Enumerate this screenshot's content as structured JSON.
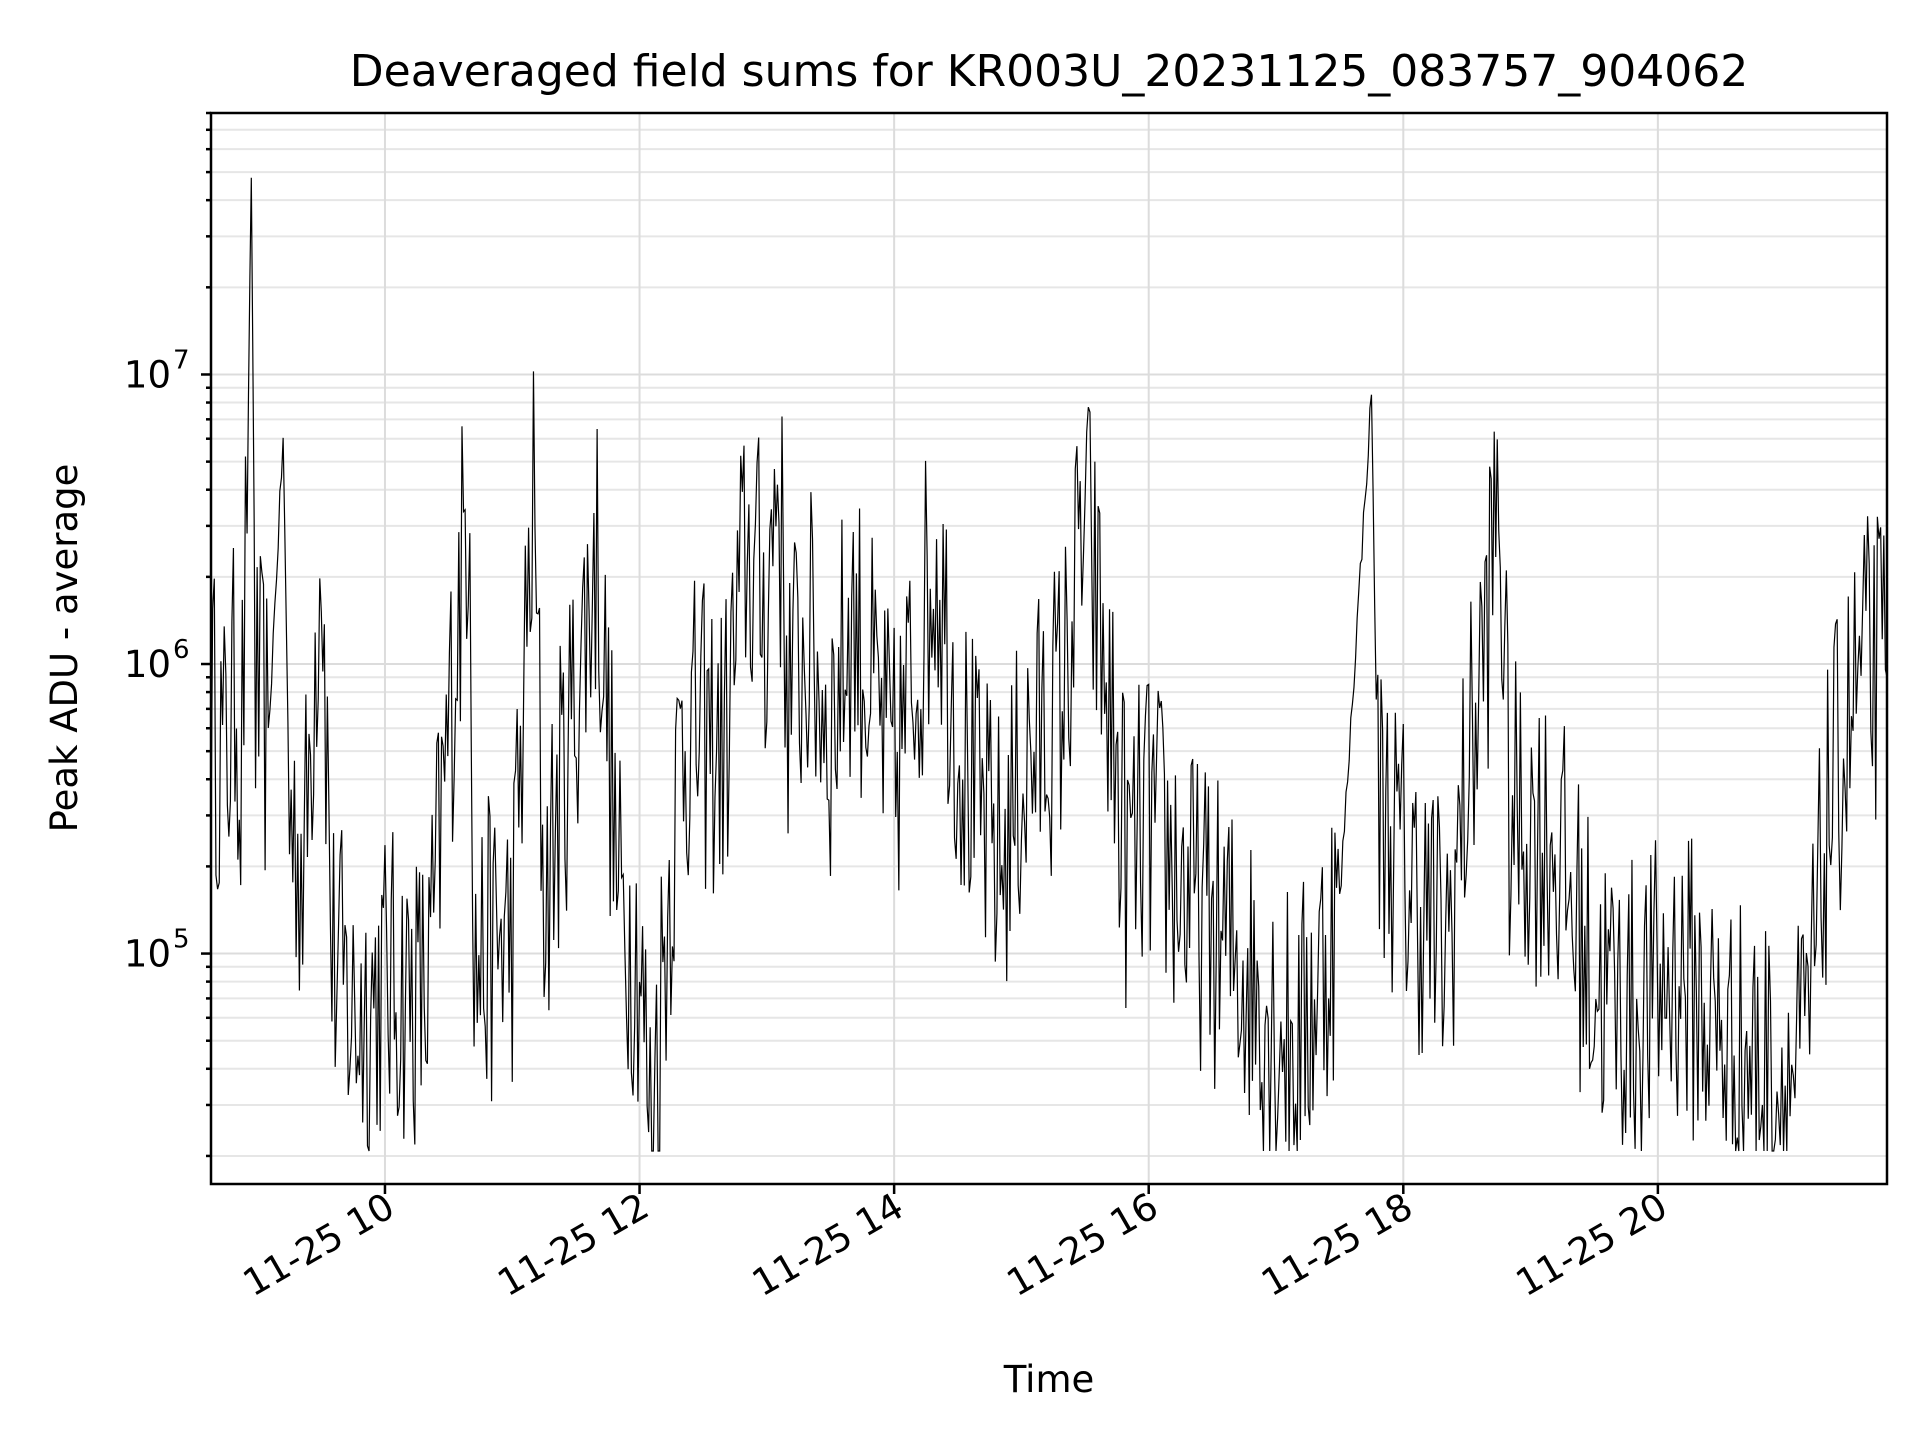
{
  "chart_data": {
    "type": "line",
    "title": "Deaveraged field sums for KR003U_20231125_083757_904062",
    "xlabel": "Time",
    "ylabel": "Peak ADU - average",
    "yscale": "log",
    "grid": "major and minor",
    "x_range": [
      "2023-11-25 08:38",
      "2023-11-25 21:48"
    ],
    "ylim": [
      16000,
      80000000
    ],
    "x_ticks": [
      {
        "time": "2023-11-25 10:00",
        "label": "11-25 10"
      },
      {
        "time": "2023-11-25 12:00",
        "label": "11-25 12"
      },
      {
        "time": "2023-11-25 14:00",
        "label": "11-25 14"
      },
      {
        "time": "2023-11-25 16:00",
        "label": "11-25 16"
      },
      {
        "time": "2023-11-25 18:00",
        "label": "11-25 18"
      },
      {
        "time": "2023-11-25 20:00",
        "label": "11-25 20"
      }
    ],
    "y_ticks": [
      {
        "value": 100000,
        "base": "10",
        "exp": "5"
      },
      {
        "value": 1000000,
        "base": "10",
        "exp": "6"
      },
      {
        "value": 10000000,
        "base": "10",
        "exp": "7"
      }
    ],
    "series": [
      {
        "color": "#000000",
        "points": [
          [
            "2023-11-25 08:38",
            700000
          ],
          [
            "2023-11-25 08:45",
            450000
          ],
          [
            "2023-11-25 08:50",
            900000
          ],
          [
            "2023-11-25 08:52",
            400000
          ],
          [
            "2023-11-25 08:55",
            3000000
          ],
          [
            "2023-11-25 08:57",
            50000000
          ],
          [
            "2023-11-25 08:59",
            800000
          ],
          [
            "2023-11-25 09:05",
            550000
          ],
          [
            "2023-11-25 09:12",
            6000000
          ],
          [
            "2023-11-25 09:15",
            300000
          ],
          [
            "2023-11-25 09:22",
            200000
          ],
          [
            "2023-11-25 09:30",
            3000000
          ],
          [
            "2023-11-25 09:35",
            100000
          ],
          [
            "2023-11-25 09:45",
            60000
          ],
          [
            "2023-11-25 10:00",
            80000
          ],
          [
            "2023-11-25 10:20",
            70000
          ],
          [
            "2023-11-25 10:40",
            4800000
          ],
          [
            "2023-11-25 10:42",
            90000
          ],
          [
            "2023-11-25 11:00",
            120000
          ],
          [
            "2023-11-25 11:10",
            3500000
          ],
          [
            "2023-11-25 11:15",
            150000
          ],
          [
            "2023-11-25 11:40",
            2500000
          ],
          [
            "2023-11-25 11:50",
            150000
          ],
          [
            "2023-11-25 12:00",
            100000
          ],
          [
            "2023-11-25 12:05",
            25000
          ],
          [
            "2023-11-25 12:20",
            600000
          ],
          [
            "2023-11-25 12:40",
            500000
          ],
          [
            "2023-11-25 12:50",
            2500000
          ],
          [
            "2023-11-25 13:00",
            1500000
          ],
          [
            "2023-11-25 13:05",
            5000000
          ],
          [
            "2023-11-25 13:10",
            800000
          ],
          [
            "2023-11-25 13:20",
            1200000
          ],
          [
            "2023-11-25 13:30",
            600000
          ],
          [
            "2023-11-25 13:40",
            1500000
          ],
          [
            "2023-11-25 14:00",
            400000
          ],
          [
            "2023-11-25 14:20",
            2500000
          ],
          [
            "2023-11-25 14:30",
            600000
          ],
          [
            "2023-11-25 14:40",
            300000
          ],
          [
            "2023-11-25 14:50",
            200000
          ],
          [
            "2023-11-25 15:00",
            400000
          ],
          [
            "2023-11-25 15:20",
            800000
          ],
          [
            "2023-11-25 15:30",
            3300000
          ],
          [
            "2023-11-25 15:40",
            800000
          ],
          [
            "2023-11-25 15:50",
            200000
          ],
          [
            "2023-11-25 16:00",
            300000
          ],
          [
            "2023-11-25 16:20",
            150000
          ],
          [
            "2023-11-25 16:40",
            100000
          ],
          [
            "2023-11-25 17:00",
            60000
          ],
          [
            "2023-11-25 17:10",
            45000
          ],
          [
            "2023-11-25 17:30",
            150000
          ],
          [
            "2023-11-25 17:45",
            8500000
          ],
          [
            "2023-11-25 17:48",
            350000
          ],
          [
            "2023-11-25 18:00",
            200000
          ],
          [
            "2023-11-25 18:20",
            100000
          ],
          [
            "2023-11-25 18:40",
            1500000
          ],
          [
            "2023-11-25 18:45",
            4000000
          ],
          [
            "2023-11-25 18:50",
            300000
          ],
          [
            "2023-11-25 19:10",
            250000
          ],
          [
            "2023-11-25 19:30",
            80000
          ],
          [
            "2023-11-25 19:50",
            60000
          ],
          [
            "2023-11-25 20:10",
            90000
          ],
          [
            "2023-11-25 20:30",
            50000
          ],
          [
            "2023-11-25 20:50",
            40000
          ],
          [
            "2023-11-25 21:00",
            35000
          ],
          [
            "2023-11-25 21:10",
            45000
          ],
          [
            "2023-11-25 21:20",
            300000
          ],
          [
            "2023-11-25 21:35",
            900000
          ],
          [
            "2023-11-25 21:45",
            1000000
          ],
          [
            "2023-11-25 21:48",
            900000
          ]
        ]
      }
    ]
  }
}
